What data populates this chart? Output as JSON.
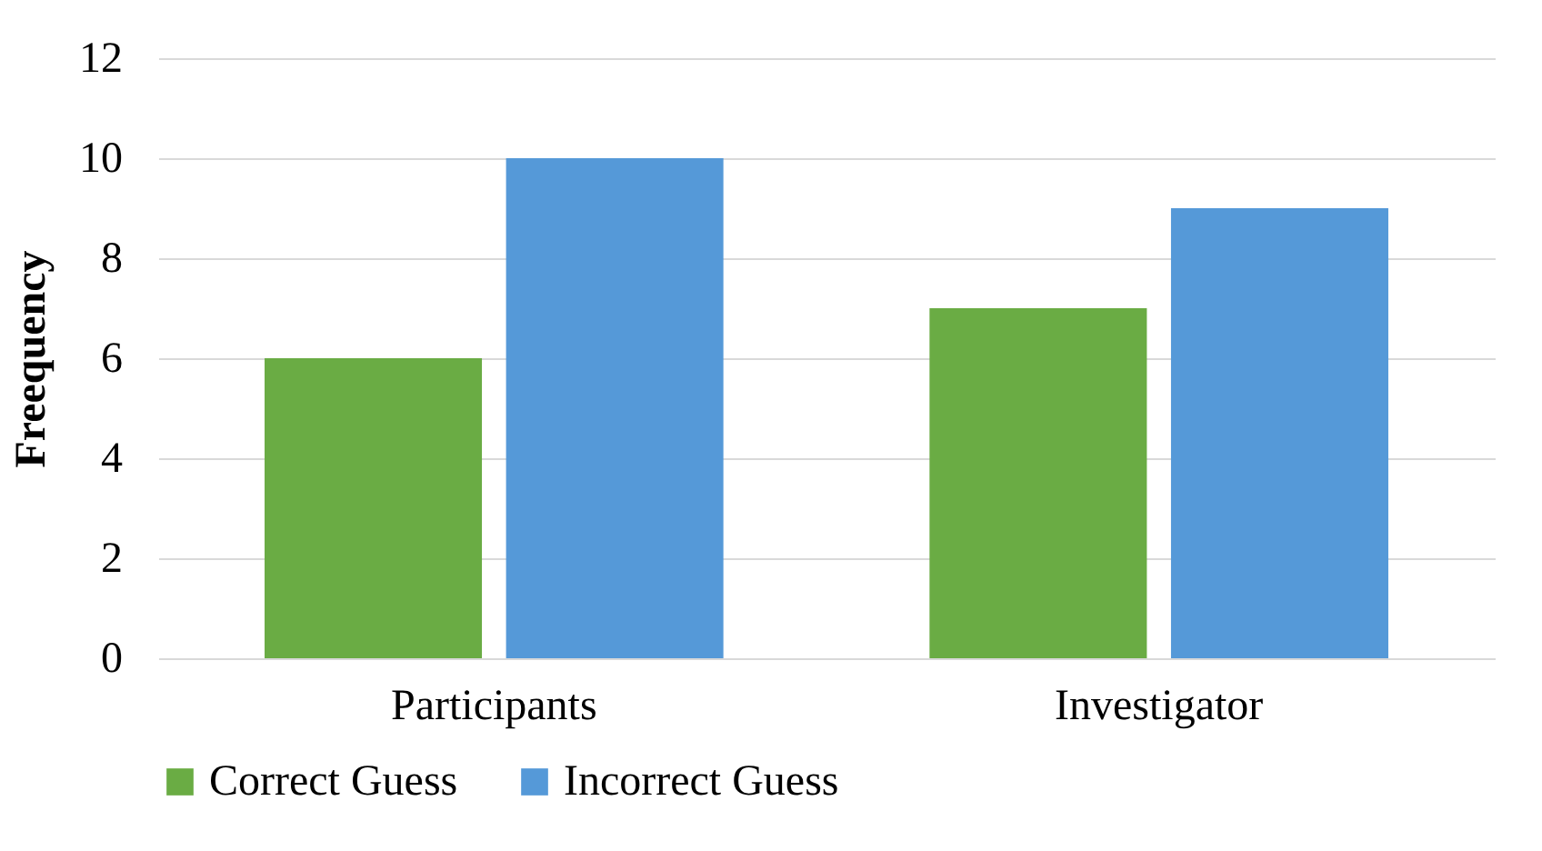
{
  "chart_data": {
    "type": "bar",
    "ylabel": "Freequency",
    "categories": [
      "Participants",
      "Investigator"
    ],
    "series": [
      {
        "name": "Correct Guess",
        "color": "#6aac44",
        "values": [
          6,
          7
        ]
      },
      {
        "name": "Incorrect Guess",
        "color": "#5599d8",
        "values": [
          10,
          9
        ]
      }
    ],
    "ylim": [
      0,
      12
    ],
    "yticks": [
      0,
      2,
      4,
      6,
      8,
      10,
      12
    ],
    "grid": "y",
    "legend": "bottom"
  }
}
